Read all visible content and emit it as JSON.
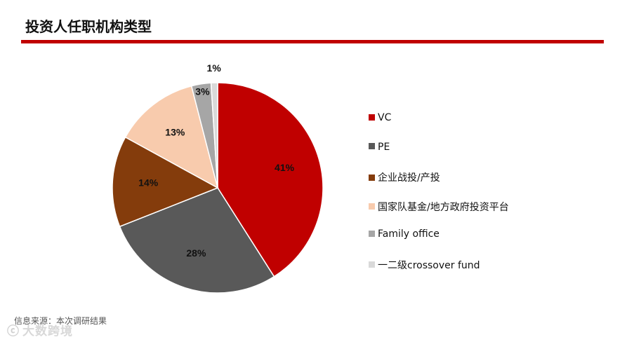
{
  "title": "投资人任职机构类型",
  "source": "信息来源：本次调研结果",
  "watermark": {
    "icon": "logo-icon",
    "text": "大数跨境"
  },
  "chart_data": {
    "type": "pie",
    "title": "",
    "legend_position": "right",
    "slices": [
      {
        "label": "VC",
        "value": 41,
        "display": "41%",
        "color": "#c00000"
      },
      {
        "label": "PE",
        "value": 28,
        "display": "28%",
        "color": "#595959"
      },
      {
        "label": "企业战投/产投",
        "value": 14,
        "display": "14%",
        "color": "#843c0c"
      },
      {
        "label": "国家队基金/地方政府投资平台",
        "value": 13,
        "display": "13%",
        "color": "#f8cbad"
      },
      {
        "label": "Family office",
        "value": 3,
        "display": "3%",
        "color": "#a6a6a6"
      },
      {
        "label": "一二级crossover fund",
        "value": 1,
        "display": "1%",
        "color": "#d9d9d9"
      }
    ]
  }
}
